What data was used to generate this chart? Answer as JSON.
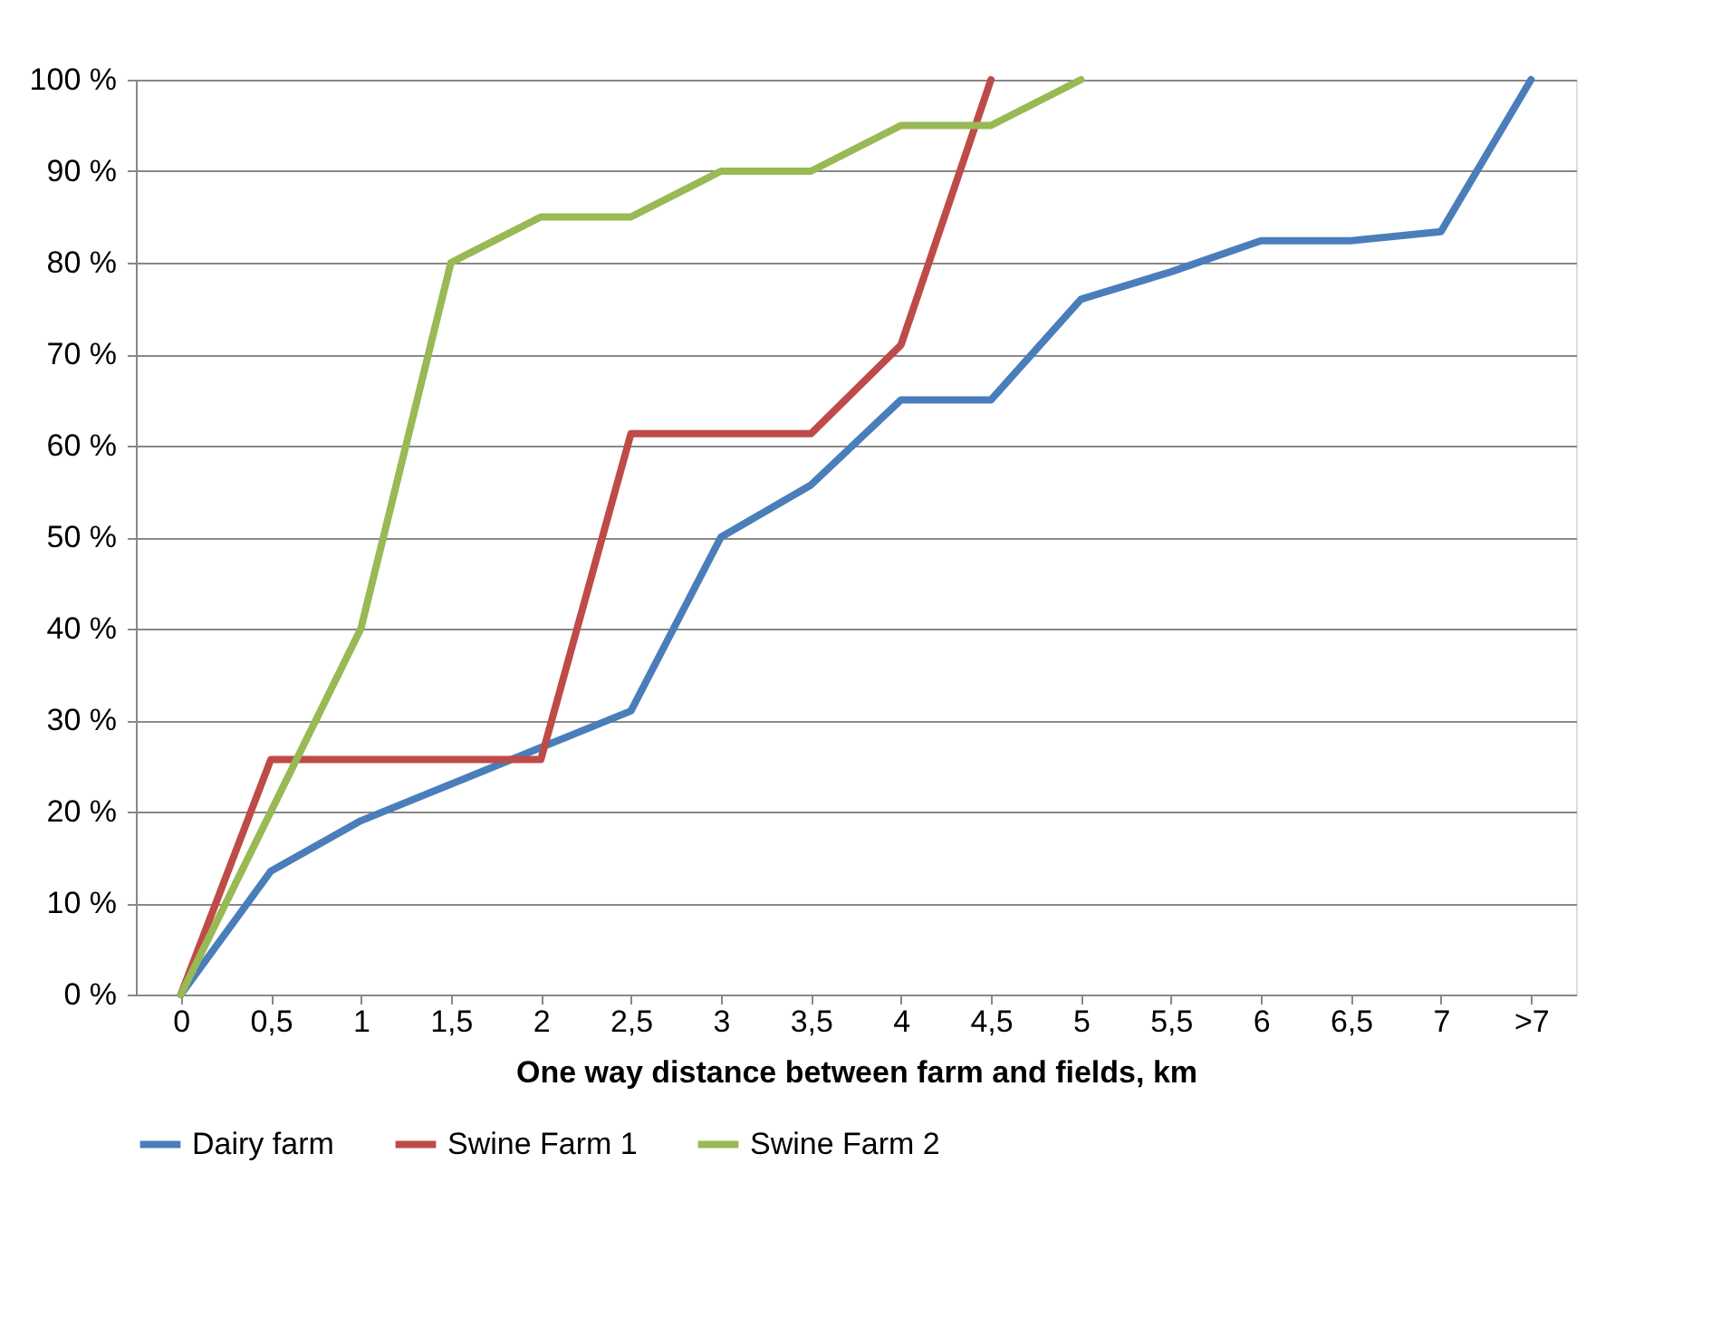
{
  "chart_data": {
    "type": "line",
    "xlabel": "One way distance between farm and fields, km",
    "categories": [
      "0",
      "0,5",
      "1",
      "1,5",
      "2",
      "2,5",
      "3",
      "3,5",
      "4",
      "4,5",
      "5",
      "5,5",
      "6",
      "6,5",
      "7",
      ">7"
    ],
    "series": [
      {
        "name": "Dairy farm",
        "color": "#4a7ebb",
        "values": [
          0,
          13.5,
          19,
          23,
          27,
          31,
          50,
          55.7,
          65,
          65,
          76,
          79,
          82.4,
          82.4,
          83.4,
          100
        ]
      },
      {
        "name": "Swine Farm 1",
        "color": "#be4b48",
        "values": [
          0,
          25.7,
          25.7,
          25.7,
          25.7,
          61.3,
          61.3,
          61.3,
          71,
          100,
          null,
          null,
          null,
          null,
          null,
          null
        ]
      },
      {
        "name": "Swine Farm 2",
        "color": "#98b954",
        "values": [
          0,
          20,
          40,
          80,
          85,
          85,
          90,
          90,
          95,
          95,
          100,
          null,
          null,
          null,
          null,
          null
        ]
      }
    ],
    "ylim": [
      0,
      100
    ],
    "yticks": [
      {
        "value": 0,
        "label": "0 %"
      },
      {
        "value": 10,
        "label": "10 %"
      },
      {
        "value": 20,
        "label": "20 %"
      },
      {
        "value": 30,
        "label": "30 %"
      },
      {
        "value": 40,
        "label": "40 %"
      },
      {
        "value": 50,
        "label": "50 %"
      },
      {
        "value": 60,
        "label": "60 %"
      },
      {
        "value": 70,
        "label": "70 %"
      },
      {
        "value": 80,
        "label": "80 %"
      },
      {
        "value": 90,
        "label": "90 %"
      },
      {
        "value": 100,
        "label": "100 %"
      }
    ],
    "grid": "y",
    "legend": "bottom",
    "marker": "none",
    "line_style": "solid"
  }
}
